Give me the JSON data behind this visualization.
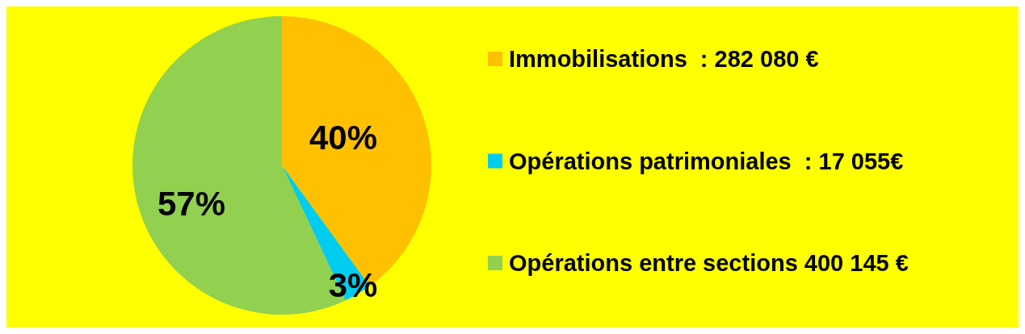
{
  "chart_data": {
    "type": "pie",
    "categories": [
      "Immobilisations  : 282 080 €",
      "Opérations patrimoniales  : 17 055€",
      "Opérations entre sections 400 145 €"
    ],
    "values": [
      40,
      3,
      57
    ],
    "value_labels": [
      "40%",
      "3%",
      "57%"
    ],
    "colors": [
      "#ffc000",
      "#00ccf0",
      "#92d050"
    ],
    "legend": "right"
  }
}
